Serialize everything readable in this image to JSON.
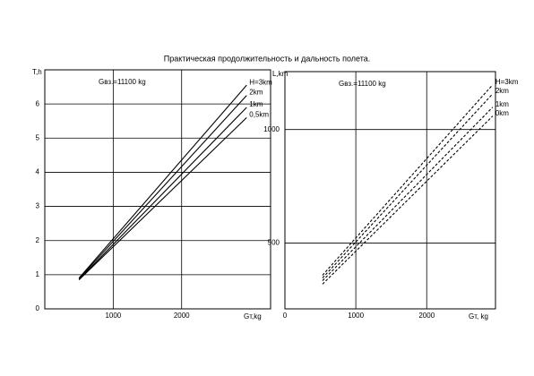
{
  "title": "Практическая продолжительность и дальность полета.",
  "chart_data": [
    {
      "type": "line",
      "y_label": "T,h",
      "x_label": "Gт,kg",
      "annotation": "Gвз.=11100 kg",
      "x": [
        500,
        2950
      ],
      "series": [
        {
          "name": "H=3km",
          "color": "#000000",
          "values": [
            0.9,
            6.55
          ]
        },
        {
          "name": "2km",
          "color": "#000000",
          "values": [
            0.88,
            6.25
          ]
        },
        {
          "name": "1km",
          "color": "#000000",
          "values": [
            0.86,
            5.9
          ]
        },
        {
          "name": "0,5km",
          "color": "#000000",
          "values": [
            0.85,
            5.6
          ]
        }
      ],
      "xlim": [
        0,
        3300
      ],
      "ylim": [
        0,
        7
      ],
      "xticks": [
        1000,
        2000
      ],
      "yticks": [
        0,
        1,
        2,
        3,
        4,
        5,
        6
      ],
      "grid": true,
      "dashed": false
    },
    {
      "type": "line",
      "y_label": "L,km",
      "x_label": "Gт, kg",
      "annotation": "Gвз.=11100 kg",
      "x": [
        530,
        2930
      ],
      "series": [
        {
          "name": "H=3km",
          "color": "#000000",
          "values": [
            358,
            1197
          ]
        },
        {
          "name": "2km",
          "color": "#000000",
          "values": [
            346,
            1157
          ]
        },
        {
          "name": "1km",
          "color": "#000000",
          "values": [
            334,
            1098
          ]
        },
        {
          "name": "0km",
          "color": "#000000",
          "values": [
            319,
            1059
          ]
        }
      ],
      "xlim": [
        0,
        2970
      ],
      "ylim": [
        210,
        1255
      ],
      "xticks": [
        0,
        1000,
        2000
      ],
      "yticks": [
        500,
        1000
      ],
      "grid": true,
      "dashed": true
    }
  ]
}
